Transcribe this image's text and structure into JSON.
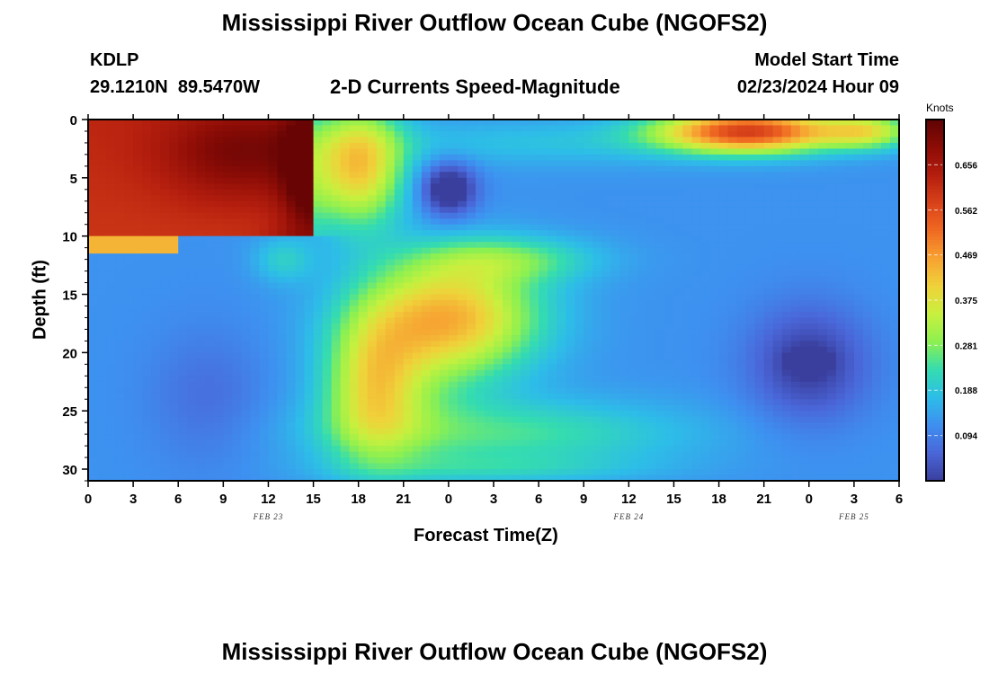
{
  "page": {
    "title": "Mississippi River Outflow Ocean Cube (NGOFS2)",
    "footer_title": "Mississippi River Outflow Ocean Cube (NGOFS2)"
  },
  "station": {
    "id": "KDLP",
    "coords": "29.1210N  89.5470W"
  },
  "model": {
    "label": "Model Start Time",
    "start": "02/23/2024 Hour 09"
  },
  "chart_data": {
    "type": "heatmap",
    "subtitle": "2-D Currents Speed-Magnitude",
    "xlabel": "Forecast Time(Z)",
    "ylabel": "Depth (ft)",
    "x_tick_labels": [
      "0",
      "3",
      "6",
      "9",
      "12",
      "15",
      "18",
      "21",
      "0",
      "3",
      "6",
      "9",
      "12",
      "15",
      "18",
      "21",
      "0",
      "3",
      "6"
    ],
    "x_range_hours": [
      0,
      54
    ],
    "x_tick_step_hours": 3,
    "date_labels": [
      {
        "label": "FEB 23",
        "hour": 12
      },
      {
        "label": "FEB 24",
        "hour": 36
      },
      {
        "label": "FEB 25",
        "hour": 51
      }
    ],
    "y_ticks": [
      0,
      5,
      10,
      15,
      20,
      25,
      30
    ],
    "y_range": [
      0,
      31
    ],
    "y_inverted": true,
    "colorbar": {
      "unit": "Knots",
      "ticks": [
        0.094,
        0.188,
        0.281,
        0.375,
        0.469,
        0.562,
        0.656
      ],
      "range": [
        0.0,
        0.75
      ],
      "colors": [
        "#3a3f9e",
        "#4a66d8",
        "#3e8ff0",
        "#2dbde8",
        "#34dcb0",
        "#8df050",
        "#c8f03e",
        "#f0d23a",
        "#f7a232",
        "#f06a22",
        "#d8421a",
        "#b41e0e",
        "#8c0c06",
        "#600404"
      ]
    },
    "field_description_points": [
      {
        "hour": 4,
        "depth": 4,
        "value": 0.68
      },
      {
        "hour": 11,
        "depth": 3,
        "value": 0.72
      },
      {
        "hour": 24,
        "depth": 6,
        "value": 0.09
      },
      {
        "hour": 25,
        "depth": 18,
        "value": 0.47
      },
      {
        "hour": 8,
        "depth": 21,
        "value": 0.08
      },
      {
        "hour": 48,
        "depth": 21,
        "value": 0.0
      },
      {
        "hour": 45,
        "depth": 1,
        "value": 0.55
      },
      {
        "hour": 32,
        "depth": 27,
        "value": 0.23
      }
    ]
  }
}
